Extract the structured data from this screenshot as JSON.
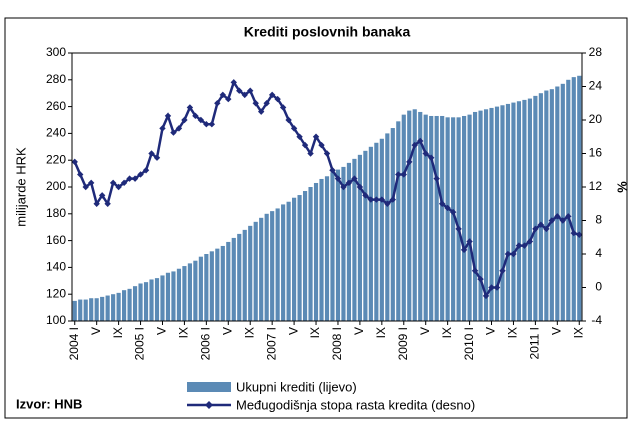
{
  "chart_data": {
    "type": "bar_line",
    "title": "Krediti poslovnih banaka",
    "ylabel": "milijarde HRK",
    "y2label": "%",
    "source": "Izvor: HNB",
    "categories": [
      "2004 I",
      null,
      null,
      null,
      "V",
      null,
      null,
      null,
      "IX",
      null,
      null,
      null,
      "2005 I",
      null,
      null,
      null,
      "V",
      null,
      null,
      null,
      "IX",
      null,
      null,
      null,
      "2006 I",
      null,
      null,
      null,
      "V",
      null,
      null,
      null,
      "IX",
      null,
      null,
      null,
      "2007 I",
      null,
      null,
      null,
      "V",
      null,
      null,
      null,
      "IX",
      null,
      null,
      null,
      "2008 I",
      null,
      null,
      null,
      "V",
      null,
      null,
      null,
      "IX",
      null,
      null,
      null,
      "2009 I",
      null,
      null,
      null,
      "V",
      null,
      null,
      null,
      "IX",
      null,
      null,
      null,
      "2010 I",
      null,
      null,
      null,
      "V",
      null,
      null,
      null,
      "IX",
      null,
      null,
      null,
      "2011 I",
      null,
      null,
      null,
      "V",
      null,
      null,
      null,
      "IX"
    ],
    "series": [
      {
        "name": "Ukupni krediti (lijevo)",
        "type": "bar",
        "color": "#5b8ab5",
        "values": [
          115,
          116,
          116,
          117,
          117,
          118,
          119,
          120,
          121,
          123,
          124,
          126,
          128,
          129,
          131,
          132,
          134,
          136,
          137,
          139,
          141,
          143,
          145,
          148,
          150,
          152,
          154,
          156,
          159,
          162,
          165,
          168,
          171,
          174,
          177,
          180,
          182,
          184,
          187,
          189,
          192,
          194,
          197,
          200,
          203,
          206,
          208,
          211,
          213,
          215,
          218,
          221,
          224,
          227,
          230,
          233,
          236,
          240,
          244,
          249,
          254,
          257,
          258,
          256,
          254,
          253,
          253,
          253,
          252,
          252,
          252,
          253,
          254,
          256,
          257,
          258,
          259,
          260,
          261,
          262,
          263,
          264,
          265,
          266,
          268,
          270,
          272,
          273,
          275,
          277,
          280,
          282,
          283
        ]
      },
      {
        "name": "Međugodišnja stopa rasta kredita (desno)",
        "type": "line",
        "axis": "y2",
        "color": "#1f2a7a",
        "values": [
          15,
          13.5,
          12,
          12.5,
          10,
          11,
          10,
          12.5,
          12,
          12.5,
          13,
          13,
          13.5,
          14,
          16,
          15.5,
          19,
          20.5,
          18.5,
          19,
          20,
          21.5,
          20.5,
          20,
          19.5,
          19.5,
          22,
          23,
          22.5,
          24.5,
          23.5,
          23,
          23.5,
          22,
          21,
          22,
          23,
          22.5,
          21.5,
          20,
          19,
          18,
          17,
          16,
          18,
          17,
          16,
          14,
          13,
          12,
          12.5,
          13,
          12,
          11,
          10.5,
          10.5,
          10.5,
          10,
          10.5,
          13.5,
          13.5,
          15,
          17,
          17.5,
          16,
          15.5,
          13,
          10,
          9.5,
          9,
          7,
          4.5,
          5.5,
          2,
          1,
          -1,
          0,
          0,
          2,
          4,
          4,
          5,
          5,
          5.5,
          7,
          7.5,
          7,
          8,
          8.5,
          8,
          8.5,
          6.5,
          6.3
        ]
      }
    ],
    "ylim": [
      100,
      300
    ],
    "yticks": [
      100,
      120,
      140,
      160,
      180,
      200,
      220,
      240,
      260,
      280,
      300
    ],
    "y2lim": [
      -4,
      28
    ],
    "y2ticks": [
      -4,
      0,
      4,
      8,
      12,
      16,
      20,
      24,
      28
    ],
    "grid": false
  }
}
